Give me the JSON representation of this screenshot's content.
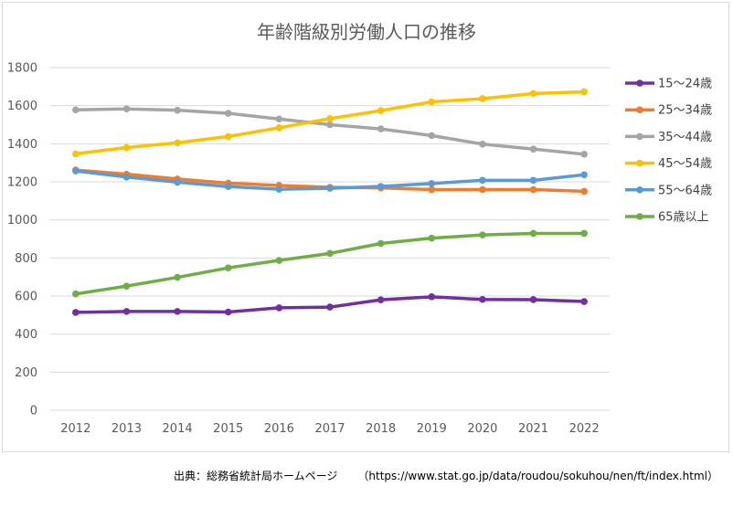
{
  "chart_data": {
    "type": "line",
    "title": "年齢階級別労働人口の推移",
    "x": [
      "2012",
      "2013",
      "2014",
      "2015",
      "2016",
      "2017",
      "2018",
      "2019",
      "2020",
      "2021",
      "2022"
    ],
    "ylim": [
      0,
      1800
    ],
    "yticks": [
      "0",
      "200",
      "400",
      "600",
      "800",
      "1000",
      "1200",
      "1400",
      "1600",
      "1800"
    ],
    "grid": true,
    "legend_position": "right",
    "series": [
      {
        "name": "15〜24歳",
        "color": "#7030a0",
        "values": [
          514,
          519,
          519,
          516,
          538,
          542,
          580,
          596,
          582,
          581,
          571
        ]
      },
      {
        "name": "25〜34歳",
        "color": "#ed7d31",
        "values": [
          1262,
          1240,
          1215,
          1193,
          1181,
          1171,
          1168,
          1159,
          1159,
          1159,
          1150
        ]
      },
      {
        "name": "35〜44歳",
        "color": "#a5a5a5",
        "values": [
          1578,
          1583,
          1576,
          1560,
          1530,
          1500,
          1478,
          1443,
          1398,
          1372,
          1345
        ]
      },
      {
        "name": "45〜54歳",
        "color": "#ffc000",
        "values": [
          1347,
          1380,
          1405,
          1438,
          1484,
          1532,
          1574,
          1620,
          1637,
          1664,
          1673
        ]
      },
      {
        "name": "55〜64歳",
        "color": "#5b9bd5",
        "values": [
          1257,
          1225,
          1198,
          1175,
          1161,
          1166,
          1176,
          1191,
          1208,
          1208,
          1237
        ]
      },
      {
        "name": "65歳以上",
        "color": "#70ad47",
        "values": [
          611,
          652,
          698,
          748,
          787,
          824,
          876,
          904,
          921,
          929,
          929
        ]
      }
    ]
  },
  "source": {
    "label": "出典：総務省統計局ホームページ",
    "url": "（https://www.stat.go.jp/data/roudou/sokuhou/nen/ft/index.html）"
  }
}
